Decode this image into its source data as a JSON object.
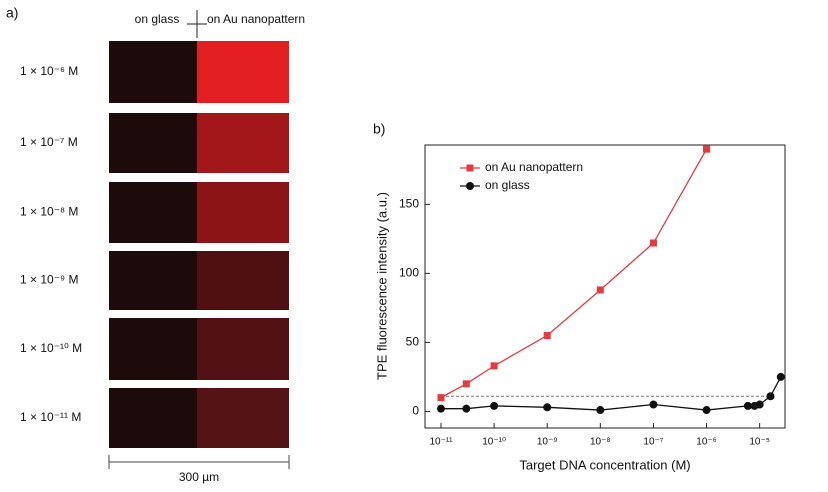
{
  "panel_a": {
    "label": "a)",
    "column_labels": [
      "on glass",
      "on Au nanopattern"
    ],
    "rows": [
      "1 × 10⁻⁶ M",
      "1 × 10⁻⁷ M",
      "1 × 10⁻⁸ M",
      "1 × 10⁻⁹ M",
      "1 × 10⁻¹⁰ M",
      "1 × 10⁻¹¹ M"
    ],
    "scale_bar": "300 µm"
  },
  "chart_data": {
    "type": "line",
    "panel_label": "b)",
    "xlabel": "Target DNA concentration (M)",
    "ylabel": "TPE fluorescence intensity (a.u.)",
    "xscale": "log",
    "grid": false,
    "legend": "upper left",
    "xlim": [
      5e-12,
      3e-05
    ],
    "ylim": [
      -12,
      193
    ],
    "xticks": [
      {
        "value": 1e-11,
        "label": "10⁻¹¹"
      },
      {
        "value": 1e-10,
        "label": "10⁻¹⁰"
      },
      {
        "value": 1e-09,
        "label": "10⁻⁹"
      },
      {
        "value": 1e-08,
        "label": "10⁻⁸"
      },
      {
        "value": 1e-07,
        "label": "10⁻⁷"
      },
      {
        "value": 1e-06,
        "label": "10⁻⁶"
      },
      {
        "value": 1e-05,
        "label": "10⁻⁵"
      }
    ],
    "yticks": [
      0,
      50,
      100,
      150
    ],
    "reference_line": 11,
    "series": [
      {
        "name": "on Au nanopattern",
        "color": "#e8393c",
        "marker": "square",
        "x": [
          1e-11,
          3e-11,
          1e-10,
          1e-09,
          1e-08,
          1e-07,
          1e-06
        ],
        "values": [
          10,
          20,
          33,
          55,
          88,
          122,
          190
        ]
      },
      {
        "name": "on glass",
        "color": "#111111",
        "marker": "circle",
        "x": [
          1e-11,
          3e-11,
          1e-10,
          1e-09,
          1e-08,
          1e-07,
          1e-06,
          6e-06,
          8e-06,
          1e-05,
          1.6e-05,
          2.5e-05
        ],
        "values": [
          2,
          2,
          4,
          3,
          1,
          5,
          1,
          4,
          4,
          5,
          11,
          25
        ]
      }
    ]
  }
}
